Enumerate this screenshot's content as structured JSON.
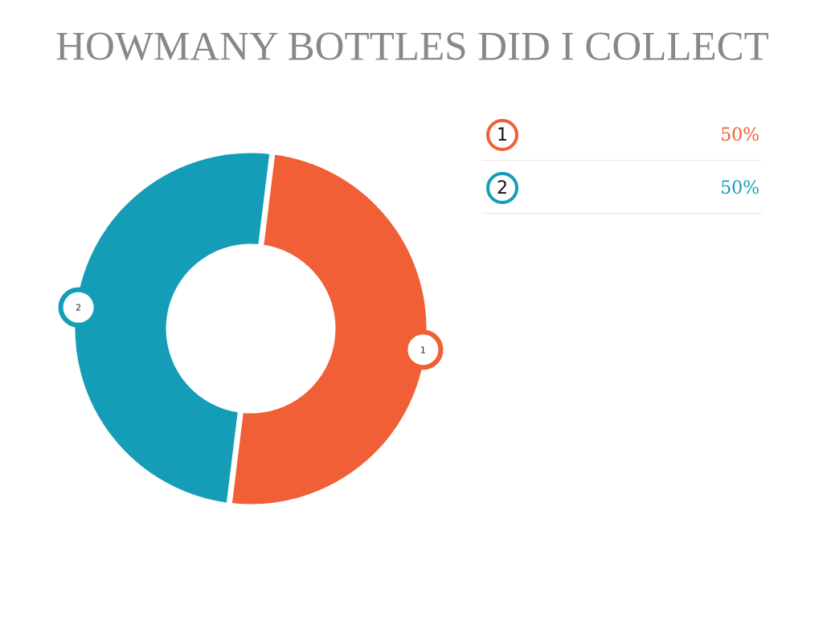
{
  "chart_data": {
    "type": "pie",
    "donut": true,
    "title": "HOWMANY BOTTLES DID I COLLECT",
    "categories": [
      "1",
      "2"
    ],
    "values": [
      50,
      50
    ],
    "value_labels": [
      "50%",
      "50%"
    ],
    "colors": [
      "#f05f35",
      "#159db8"
    ]
  }
}
